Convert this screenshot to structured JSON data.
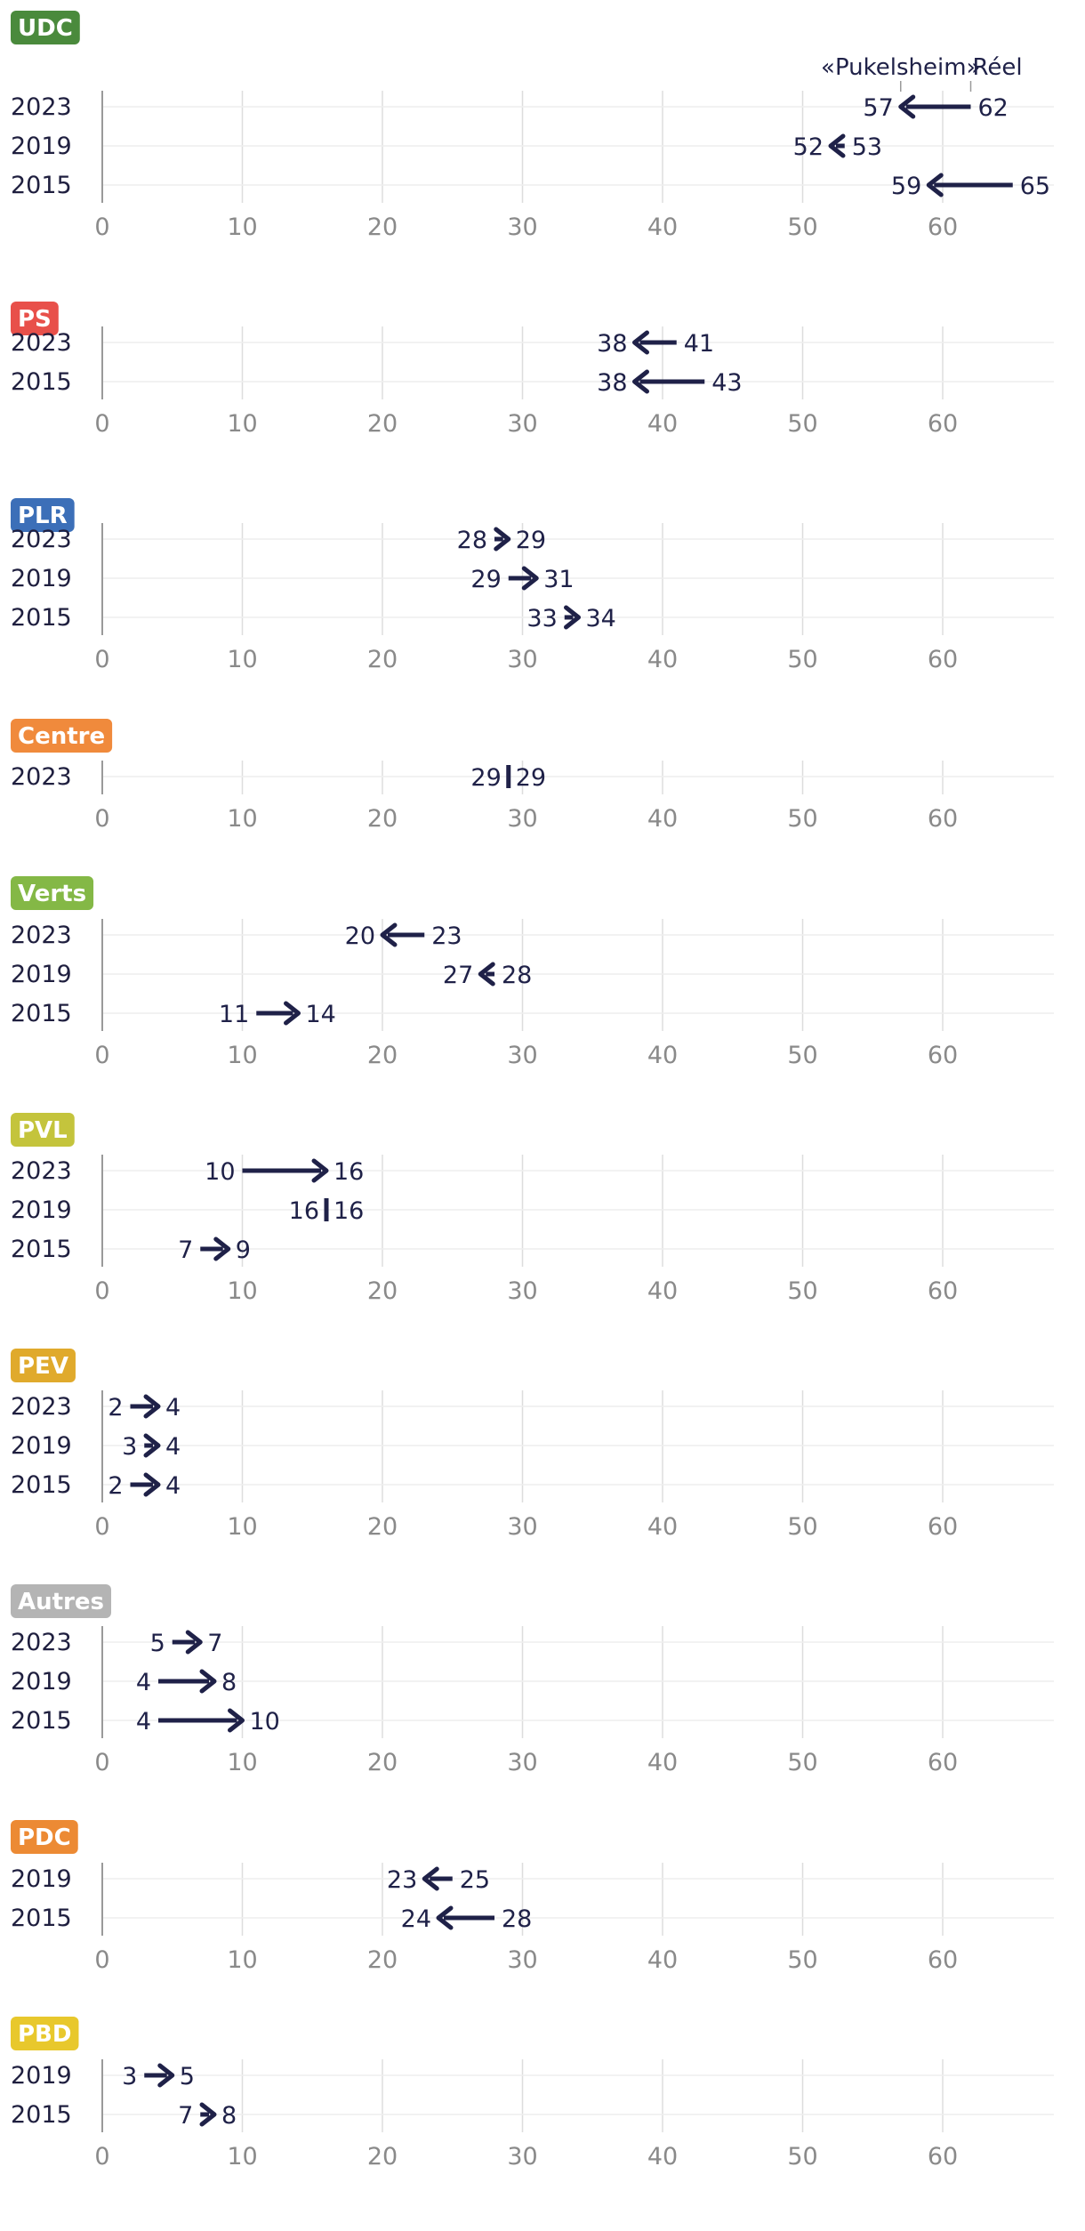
{
  "chart_data": {
    "type": "arrow",
    "xlim": [
      0,
      68
    ],
    "xticks": [
      0,
      10,
      20,
      30,
      40,
      50,
      60
    ],
    "grid": true,
    "legend": {
      "from_label": "Réel",
      "to_label": "«Pukelsheim»"
    },
    "colors": {
      "arrow": "#1f2148",
      "grid": "#dddddd",
      "axis": "#9a9a9a"
    },
    "panels": [
      {
        "party": "UDC",
        "color": "#4a8a3c",
        "rows": [
          {
            "year": "2023",
            "from": 62,
            "to": 57
          },
          {
            "year": "2019",
            "from": 53,
            "to": 52
          },
          {
            "year": "2015",
            "from": 65,
            "to": 59
          }
        ]
      },
      {
        "party": "PS",
        "color": "#e8504a",
        "rows": [
          {
            "year": "2023",
            "from": 41,
            "to": 38
          },
          {
            "year": "2015",
            "from": 43,
            "to": 38
          }
        ]
      },
      {
        "party": "PLR",
        "color": "#3c6fb8",
        "rows": [
          {
            "year": "2023",
            "from": 28,
            "to": 29
          },
          {
            "year": "2019",
            "from": 29,
            "to": 31
          },
          {
            "year": "2015",
            "from": 33,
            "to": 34
          }
        ]
      },
      {
        "party": "Centre",
        "color": "#f08a3c",
        "rows": [
          {
            "year": "2023",
            "from": 29,
            "to": 29
          }
        ]
      },
      {
        "party": "Verts",
        "color": "#84b846",
        "rows": [
          {
            "year": "2023",
            "from": 23,
            "to": 20
          },
          {
            "year": "2019",
            "from": 28,
            "to": 27
          },
          {
            "year": "2015",
            "from": 11,
            "to": 14
          }
        ]
      },
      {
        "party": "PVL",
        "color": "#c4c43c",
        "rows": [
          {
            "year": "2023",
            "from": 10,
            "to": 16
          },
          {
            "year": "2019",
            "from": 16,
            "to": 16
          },
          {
            "year": "2015",
            "from": 7,
            "to": 9
          }
        ]
      },
      {
        "party": "PEV",
        "color": "#e0aa2c",
        "rows": [
          {
            "year": "2023",
            "from": 2,
            "to": 4
          },
          {
            "year": "2019",
            "from": 3,
            "to": 4
          },
          {
            "year": "2015",
            "from": 2,
            "to": 4
          }
        ]
      },
      {
        "party": "Autres",
        "color": "#b4b4b4",
        "rows": [
          {
            "year": "2023",
            "from": 5,
            "to": 7
          },
          {
            "year": "2019",
            "from": 4,
            "to": 8
          },
          {
            "year": "2015",
            "from": 4,
            "to": 10
          }
        ]
      },
      {
        "party": "PDC",
        "color": "#ec8a34",
        "rows": [
          {
            "year": "2019",
            "from": 25,
            "to": 23
          },
          {
            "year": "2015",
            "from": 28,
            "to": 24
          }
        ]
      },
      {
        "party": "PBD",
        "color": "#e8c82c",
        "rows": [
          {
            "year": "2019",
            "from": 3,
            "to": 5
          },
          {
            "year": "2015",
            "from": 7,
            "to": 8
          }
        ]
      }
    ]
  }
}
